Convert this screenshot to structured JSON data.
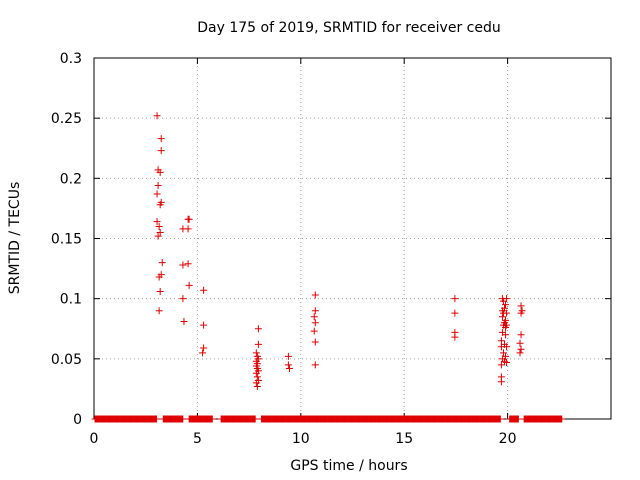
{
  "chart_data": {
    "type": "scatter",
    "title": "Day 175 of 2019, SRMTID for receiver cedu",
    "xlabel": "GPS time / hours",
    "ylabel": "SRMTID / TECUs",
    "xlim": [
      0,
      25
    ],
    "ylim": [
      0,
      0.3
    ],
    "xticks": [
      0,
      5,
      10,
      15,
      20
    ],
    "xtick_labels": [
      "0",
      "5",
      "10",
      "15",
      "20"
    ],
    "yticks": [
      0,
      0.05,
      0.1,
      0.15,
      0.2,
      0.25,
      0.3
    ],
    "ytick_labels": [
      "0",
      "0.05",
      "0.1",
      "0.15",
      "0.2",
      "0.25",
      "0.3"
    ],
    "grid": true,
    "marker": "+",
    "color": "#e00000",
    "zero_level_ranges": [
      [
        0.05,
        3.05
      ],
      [
        3.35,
        4.3
      ],
      [
        4.6,
        5.75
      ],
      [
        6.15,
        7.8
      ],
      [
        8.1,
        19.65
      ],
      [
        20.1,
        20.55
      ],
      [
        20.8,
        22.65
      ]
    ],
    "series": [
      {
        "name": "SRMTID",
        "points": [
          [
            3.05,
            0.252
          ],
          [
            3.1,
            0.207
          ],
          [
            3.1,
            0.194
          ],
          [
            3.05,
            0.187
          ],
          [
            3.2,
            0.178
          ],
          [
            3.05,
            0.164
          ],
          [
            3.15,
            0.16
          ],
          [
            3.1,
            0.152
          ],
          [
            3.15,
            0.118
          ],
          [
            3.15,
            0.09
          ],
          [
            3.25,
            0.233
          ],
          [
            3.25,
            0.223
          ],
          [
            3.2,
            0.205
          ],
          [
            3.25,
            0.18
          ],
          [
            3.2,
            0.155
          ],
          [
            3.3,
            0.13
          ],
          [
            3.25,
            0.12
          ],
          [
            3.2,
            0.106
          ],
          [
            4.3,
            0.158
          ],
          [
            4.3,
            0.128
          ],
          [
            4.3,
            0.1
          ],
          [
            4.35,
            0.081
          ],
          [
            4.55,
            0.166
          ],
          [
            4.55,
            0.158
          ],
          [
            4.6,
            0.166
          ],
          [
            4.55,
            0.129
          ],
          [
            4.6,
            0.111
          ],
          [
            5.3,
            0.107
          ],
          [
            5.3,
            0.078
          ],
          [
            5.3,
            0.059
          ],
          [
            5.25,
            0.055
          ],
          [
            7.95,
            0.075
          ],
          [
            7.95,
            0.062
          ],
          [
            7.85,
            0.055
          ],
          [
            7.9,
            0.052
          ],
          [
            7.95,
            0.05
          ],
          [
            7.85,
            0.048
          ],
          [
            7.9,
            0.046
          ],
          [
            7.85,
            0.044
          ],
          [
            7.9,
            0.042
          ],
          [
            7.95,
            0.04
          ],
          [
            7.85,
            0.038
          ],
          [
            7.9,
            0.035
          ],
          [
            7.95,
            0.032
          ],
          [
            7.85,
            0.03
          ],
          [
            7.9,
            0.027
          ],
          [
            9.4,
            0.052
          ],
          [
            9.4,
            0.045
          ],
          [
            9.45,
            0.042
          ],
          [
            10.7,
            0.103
          ],
          [
            10.7,
            0.09
          ],
          [
            10.65,
            0.085
          ],
          [
            10.7,
            0.08
          ],
          [
            10.65,
            0.073
          ],
          [
            10.7,
            0.064
          ],
          [
            10.7,
            0.045
          ],
          [
            17.45,
            0.1
          ],
          [
            17.45,
            0.088
          ],
          [
            17.45,
            0.072
          ],
          [
            17.45,
            0.068
          ],
          [
            19.75,
            0.1
          ],
          [
            19.8,
            0.098
          ],
          [
            19.75,
            0.09
          ],
          [
            19.85,
            0.092
          ],
          [
            19.8,
            0.088
          ],
          [
            19.75,
            0.085
          ],
          [
            19.85,
            0.08
          ],
          [
            19.8,
            0.078
          ],
          [
            19.9,
            0.076
          ],
          [
            19.75,
            0.072
          ],
          [
            19.7,
            0.065
          ],
          [
            19.7,
            0.06
          ],
          [
            19.85,
            0.062
          ],
          [
            19.8,
            0.055
          ],
          [
            19.75,
            0.05
          ],
          [
            19.85,
            0.048
          ],
          [
            19.7,
            0.045
          ],
          [
            19.7,
            0.035
          ],
          [
            19.7,
            0.031
          ],
          [
            19.95,
            0.1
          ],
          [
            19.9,
            0.095
          ],
          [
            19.95,
            0.088
          ],
          [
            19.9,
            0.082
          ],
          [
            19.95,
            0.078
          ],
          [
            19.9,
            0.07
          ],
          [
            19.95,
            0.06
          ],
          [
            19.9,
            0.052
          ],
          [
            19.95,
            0.047
          ],
          [
            20.65,
            0.094
          ],
          [
            20.7,
            0.09
          ],
          [
            20.65,
            0.088
          ],
          [
            20.65,
            0.07
          ],
          [
            20.6,
            0.063
          ],
          [
            20.65,
            0.058
          ],
          [
            20.6,
            0.055
          ]
        ]
      }
    ]
  }
}
